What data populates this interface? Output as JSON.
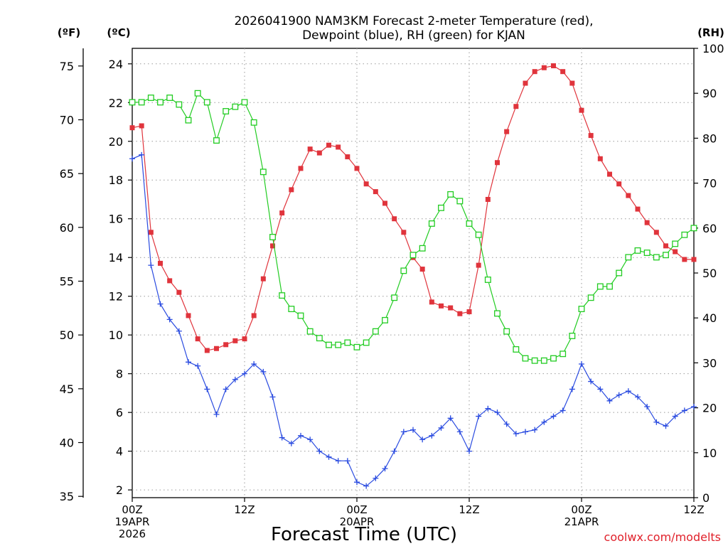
{
  "chart_data": {
    "type": "line",
    "title_line1": "2026041900 NAM3KM Forecast 2-meter Temperature (red),",
    "title_line2": "Dewpoint (blue), RH (green) for KJAN",
    "xlabel": "Forecast Time (UTC)",
    "credit": "coolwx.com/modelts",
    "unit_labels": {
      "fahrenheit": "(ºF)",
      "celsius": "(ºC)",
      "rh": "(RH)"
    },
    "x_hours_range": [
      0,
      60
    ],
    "celsius_range": [
      1.6,
      24.8
    ],
    "rh_range": [
      0,
      100
    ],
    "celsius_ticks": [
      "2",
      "4",
      "6",
      "8",
      "10",
      "12",
      "14",
      "16",
      "18",
      "20",
      "22",
      "24"
    ],
    "fahrenheit_ticks": [
      "35",
      "40",
      "45",
      "50",
      "55",
      "60",
      "65",
      "70",
      "75"
    ],
    "rh_ticks": [
      "0",
      "10",
      "20",
      "30",
      "40",
      "50",
      "60",
      "70",
      "80",
      "90",
      "100"
    ],
    "x_ticks": [
      {
        "hour": 0,
        "lines": [
          "00Z",
          "19APR",
          "2026"
        ]
      },
      {
        "hour": 12,
        "lines": [
          "12Z"
        ]
      },
      {
        "hour": 24,
        "lines": [
          "00Z",
          "20APR"
        ]
      },
      {
        "hour": 36,
        "lines": [
          "12Z"
        ]
      },
      {
        "hour": 48,
        "lines": [
          "00Z",
          "21APR"
        ]
      },
      {
        "hour": 60,
        "lines": [
          "12Z"
        ]
      }
    ],
    "series": [
      {
        "name": "Temperature",
        "unit": "C",
        "color": "#e0343c",
        "marker": "filled-square",
        "x": [
          0,
          1,
          2,
          3,
          4,
          5,
          6,
          7,
          8,
          9,
          10,
          11,
          12,
          13,
          14,
          15,
          16,
          17,
          18,
          19,
          20,
          21,
          22,
          23,
          24,
          25,
          26,
          27,
          28,
          29,
          30,
          31,
          32,
          33,
          34,
          35,
          36,
          37,
          38,
          39,
          40,
          41,
          42,
          43,
          44,
          45,
          46,
          47,
          48,
          49,
          50,
          51,
          52,
          53,
          54,
          55,
          56,
          57,
          58,
          59,
          60
        ],
        "values": [
          20.7,
          20.8,
          15.3,
          13.7,
          12.8,
          12.2,
          11.0,
          9.8,
          9.2,
          9.3,
          9.5,
          9.7,
          9.8,
          11.0,
          12.9,
          14.6,
          16.3,
          17.5,
          18.6,
          19.6,
          19.4,
          19.8,
          19.7,
          19.2,
          18.6,
          17.8,
          17.4,
          16.8,
          16.0,
          15.3,
          14.0,
          13.4,
          11.7,
          11.5,
          11.4,
          11.1,
          11.2,
          13.6,
          17.0,
          18.9,
          20.5,
          21.8,
          23.0,
          23.6,
          23.8,
          23.9,
          23.6,
          23.0,
          21.6,
          20.3,
          19.1,
          18.3,
          17.8,
          17.2,
          16.5,
          15.8,
          15.3,
          14.6,
          14.3,
          13.9,
          13.9
        ]
      },
      {
        "name": "Dewpoint",
        "unit": "C",
        "color": "#2a4be0",
        "marker": "plus",
        "x": [
          0,
          1,
          2,
          3,
          4,
          5,
          6,
          7,
          8,
          9,
          10,
          11,
          12,
          13,
          14,
          15,
          16,
          17,
          18,
          19,
          20,
          21,
          22,
          23,
          24,
          25,
          26,
          27,
          28,
          29,
          30,
          31,
          32,
          33,
          34,
          35,
          36,
          37,
          38,
          39,
          40,
          41,
          42,
          43,
          44,
          45,
          46,
          47,
          48,
          49,
          50,
          51,
          52,
          53,
          54,
          55,
          56,
          57,
          58,
          59,
          60
        ],
        "values": [
          19.1,
          19.3,
          13.6,
          11.6,
          10.8,
          10.2,
          8.6,
          8.4,
          7.2,
          5.9,
          7.2,
          7.7,
          8.0,
          8.5,
          8.1,
          6.8,
          4.7,
          4.4,
          4.8,
          4.6,
          4.0,
          3.7,
          3.5,
          3.5,
          2.4,
          2.2,
          2.6,
          3.1,
          4.0,
          5.0,
          5.1,
          4.6,
          4.8,
          5.2,
          5.7,
          5.0,
          4.0,
          5.8,
          6.2,
          6.0,
          5.4,
          4.9,
          5.0,
          5.1,
          5.5,
          5.8,
          6.1,
          7.2,
          8.5,
          7.6,
          7.2,
          6.6,
          6.9,
          7.1,
          6.8,
          6.3,
          5.5,
          5.3,
          5.8,
          6.1,
          6.3
        ]
      },
      {
        "name": "RH",
        "unit": "%",
        "color": "#22cc22",
        "marker": "open-square",
        "x": [
          0,
          1,
          2,
          3,
          4,
          5,
          6,
          7,
          8,
          9,
          10,
          11,
          12,
          13,
          14,
          15,
          16,
          17,
          18,
          19,
          20,
          21,
          22,
          23,
          24,
          25,
          26,
          27,
          28,
          29,
          30,
          31,
          32,
          33,
          34,
          35,
          36,
          37,
          38,
          39,
          40,
          41,
          42,
          43,
          44,
          45,
          46,
          47,
          48,
          49,
          50,
          51,
          52,
          53,
          54,
          55,
          56,
          57,
          58,
          59,
          60
        ],
        "values": [
          88,
          88,
          89,
          88,
          89,
          87.5,
          84,
          90,
          88,
          79.5,
          86,
          87,
          88,
          83.5,
          72.5,
          58,
          45,
          42,
          40.5,
          37,
          35.5,
          34,
          34,
          34.5,
          33.5,
          34.5,
          37,
          39.5,
          44.5,
          50.5,
          54,
          55.5,
          61,
          64.5,
          67.5,
          66,
          61,
          58.5,
          48.5,
          41,
          37,
          33,
          31,
          30.5,
          30.5,
          31,
          32,
          36,
          42,
          44.5,
          47,
          47,
          50,
          53.5,
          55,
          54.5,
          53.5,
          54,
          56.5,
          58.5,
          60
        ]
      }
    ]
  }
}
